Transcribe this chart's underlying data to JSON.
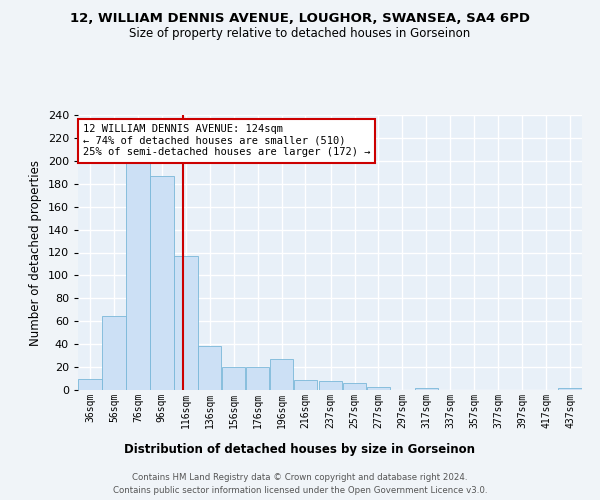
{
  "title": "12, WILLIAM DENNIS AVENUE, LOUGHOR, SWANSEA, SA4 6PD",
  "subtitle": "Size of property relative to detached houses in Gorseinon",
  "xlabel": "Distribution of detached houses by size in Gorseinon",
  "ylabel": "Number of detached properties",
  "bar_color": "#cce0f5",
  "bar_edge_color": "#7ab8d9",
  "background_color": "#e8f0f8",
  "grid_color": "#ffffff",
  "fig_background": "#f0f4f8",
  "red_line_x": 124,
  "bins": [
    36,
    56,
    76,
    96,
    116,
    136,
    156,
    176,
    196,
    216,
    237,
    257,
    277,
    297,
    317,
    337,
    357,
    377,
    397,
    417,
    437
  ],
  "bin_labels": [
    "36sqm",
    "56sqm",
    "76sqm",
    "96sqm",
    "116sqm",
    "136sqm",
    "156sqm",
    "176sqm",
    "196sqm",
    "216sqm",
    "237sqm",
    "257sqm",
    "277sqm",
    "297sqm",
    "317sqm",
    "337sqm",
    "357sqm",
    "377sqm",
    "397sqm",
    "417sqm",
    "437sqm"
  ],
  "values": [
    10,
    65,
    200,
    187,
    117,
    38,
    20,
    20,
    27,
    9,
    8,
    6,
    3,
    0,
    2,
    0,
    0,
    0,
    0,
    2
  ],
  "ylim": [
    0,
    240
  ],
  "yticks": [
    0,
    20,
    40,
    60,
    80,
    100,
    120,
    140,
    160,
    180,
    200,
    220,
    240
  ],
  "annotation_line1": "12 WILLIAM DENNIS AVENUE: 124sqm",
  "annotation_line2": "← 74% of detached houses are smaller (510)",
  "annotation_line3": "25% of semi-detached houses are larger (172) →",
  "footer_line1": "Contains HM Land Registry data © Crown copyright and database right 2024.",
  "footer_line2": "Contains public sector information licensed under the Open Government Licence v3.0."
}
